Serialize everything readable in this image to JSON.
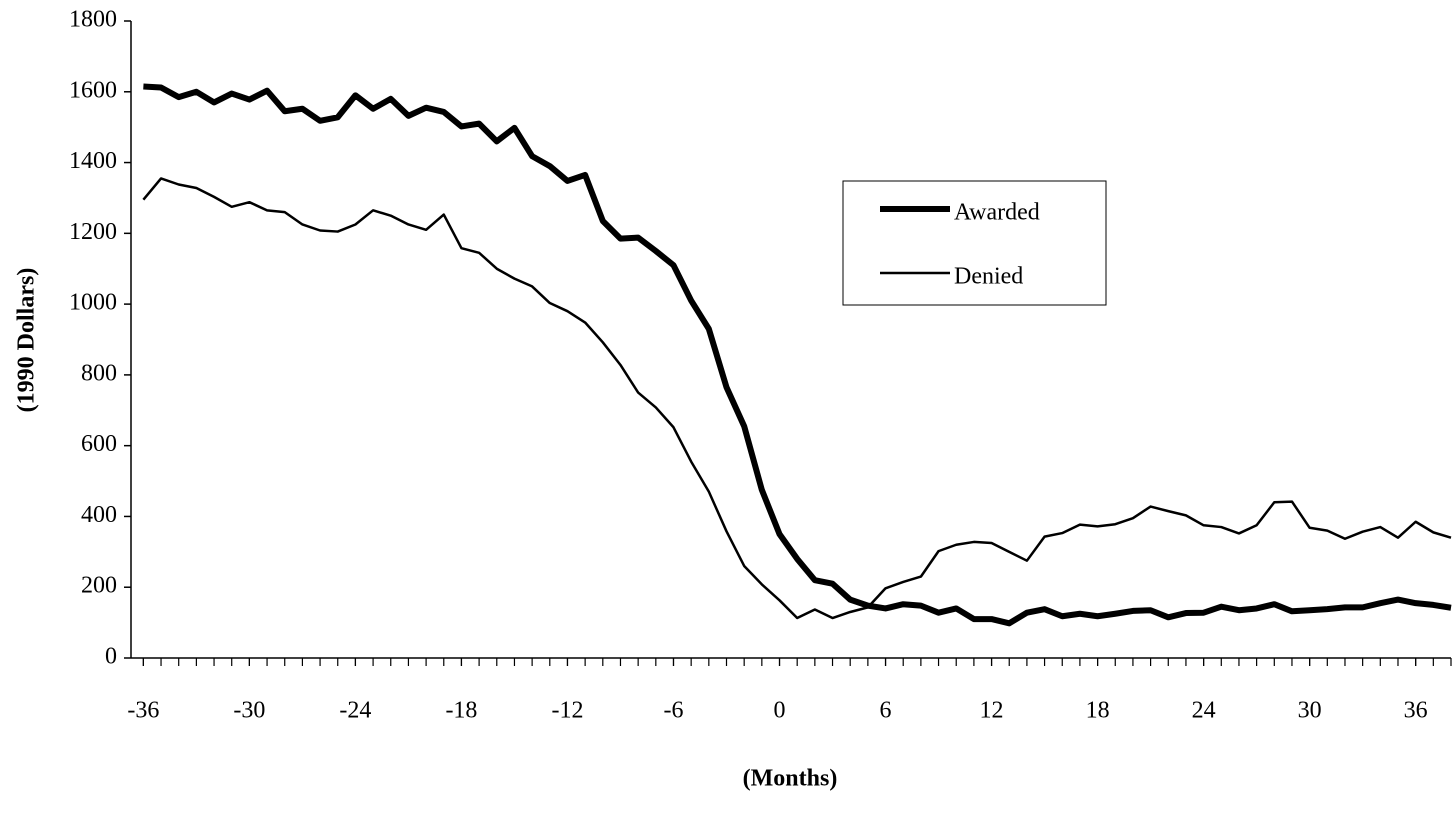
{
  "chart_data": {
    "type": "line",
    "x_label": "(Months)",
    "y_label": "(1990 Dollars)",
    "x": [
      -36,
      -35,
      -34,
      -33,
      -32,
      -31,
      -30,
      -29,
      -28,
      -27,
      -26,
      -25,
      -24,
      -23,
      -22,
      -21,
      -20,
      -19,
      -18,
      -17,
      -16,
      -15,
      -14,
      -13,
      -12,
      -11,
      -10,
      -9,
      -8,
      -7,
      -6,
      -5,
      -4,
      -3,
      -2,
      -1,
      0,
      1,
      2,
      3,
      4,
      5,
      6,
      7,
      8,
      9,
      10,
      11,
      12,
      13,
      14,
      15,
      16,
      17,
      18,
      19,
      20,
      21,
      22,
      23,
      24,
      25,
      26,
      27,
      28,
      29,
      30,
      31,
      32,
      33,
      34,
      35,
      36,
      37,
      38
    ],
    "series": [
      {
        "name": "Awarded",
        "color": "#000000",
        "width": 6,
        "values": [
          1615,
          1612,
          1585,
          1600,
          1570,
          1595,
          1578,
          1603,
          1545,
          1552,
          1518,
          1528,
          1590,
          1552,
          1580,
          1532,
          1555,
          1543,
          1502,
          1510,
          1460,
          1498,
          1418,
          1390,
          1348,
          1365,
          1235,
          1185,
          1188,
          1150,
          1110,
          1010,
          930,
          765,
          655,
          475,
          350,
          280,
          220,
          210,
          165,
          148,
          140,
          152,
          148,
          128,
          140,
          110,
          110,
          98,
          128,
          138,
          118,
          125,
          118,
          125,
          133,
          135,
          115,
          127,
          128,
          145,
          135,
          140,
          152,
          132,
          135,
          138,
          143,
          143,
          155,
          165,
          155,
          150,
          142
        ]
      },
      {
        "name": "Denied",
        "color": "#000000",
        "width": 2.5,
        "values": [
          1295,
          1355,
          1338,
          1328,
          1303,
          1275,
          1288,
          1265,
          1260,
          1225,
          1208,
          1205,
          1225,
          1265,
          1250,
          1225,
          1210,
          1253,
          1158,
          1145,
          1100,
          1072,
          1050,
          1003,
          980,
          948,
          892,
          828,
          750,
          708,
          652,
          555,
          470,
          358,
          260,
          208,
          163,
          113,
          137,
          113,
          130,
          143,
          197,
          215,
          230,
          302,
          320,
          328,
          325,
          300,
          275,
          343,
          353,
          377,
          372,
          378,
          395,
          428,
          415,
          403,
          375,
          370,
          352,
          375,
          440,
          442,
          368,
          360,
          337,
          357,
          370,
          340,
          385,
          355,
          340
        ]
      }
    ],
    "xlim": [
      -36.7,
      38
    ],
    "xticks": [
      -36,
      -30,
      -24,
      -18,
      -12,
      -6,
      0,
      6,
      12,
      18,
      24,
      30,
      36
    ],
    "ylim": [
      0,
      1800
    ],
    "yticks": [
      0,
      200,
      400,
      600,
      800,
      1000,
      1200,
      1400,
      1600,
      1800
    ],
    "grid": false
  }
}
